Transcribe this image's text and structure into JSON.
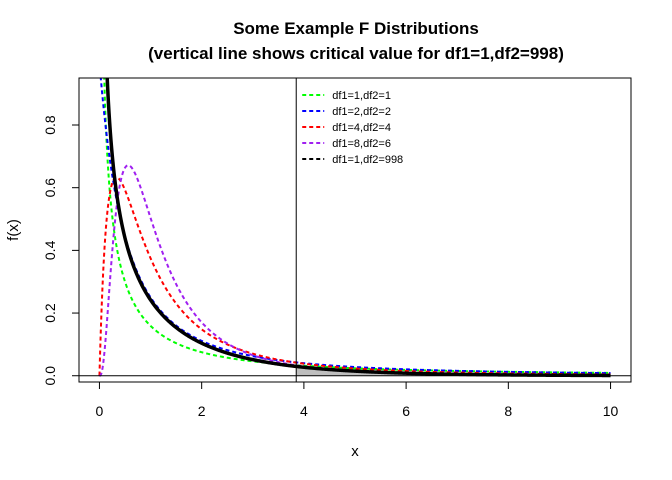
{
  "chart_data": {
    "type": "line",
    "title_line1": "Some Example F Distributions",
    "title_line2": "(vertical line shows critical value for df1=1,df2=998)",
    "xlabel": "x",
    "ylabel": "f(x)",
    "xlim": [
      -0.4,
      10.4
    ],
    "ylim": [
      -0.02,
      0.95
    ],
    "x_ticks": [
      0,
      2,
      4,
      6,
      8,
      10
    ],
    "y_ticks": [
      0.0,
      0.2,
      0.4,
      0.6,
      0.8
    ],
    "x_tick_labels": [
      "0",
      "2",
      "4",
      "6",
      "8",
      "10"
    ],
    "y_tick_labels": [
      "0.0",
      "0.2",
      "0.4",
      "0.6",
      "0.8"
    ],
    "critical_value": 3.85,
    "shaded_region": {
      "from": 3.85,
      "to": 10,
      "series": "df1=1,df2=998",
      "color": "#bebebe"
    },
    "legend_position": "top-right (right of critical line)",
    "series": [
      {
        "name": "df1=1,df2=1",
        "df1": 1,
        "df2": 1,
        "color": "#00ff00",
        "style": "dashed"
      },
      {
        "name": "df1=2,df2=2",
        "df1": 2,
        "df2": 2,
        "color": "#0000ff",
        "style": "dashed"
      },
      {
        "name": "df1=4,df2=4",
        "df1": 4,
        "df2": 4,
        "color": "#ff0000",
        "style": "dashed"
      },
      {
        "name": "df1=8,df2=6",
        "df1": 8,
        "df2": 6,
        "color": "#a020f0",
        "style": "dashed"
      },
      {
        "name": "df1=1,df2=998",
        "df1": 1,
        "df2": 998,
        "color": "#000000",
        "style": "solid-thick"
      }
    ],
    "legend_entries": [
      {
        "label": "df1=1,df2=1",
        "color": "#00ff00"
      },
      {
        "label": "df1=2,df2=2",
        "color": "#0000ff"
      },
      {
        "label": "df1=4,df2=4",
        "color": "#ff0000"
      },
      {
        "label": "df1=8,df2=6",
        "color": "#a020f0"
      },
      {
        "label": "df1=1,df2=998",
        "color": "#000000"
      }
    ]
  }
}
